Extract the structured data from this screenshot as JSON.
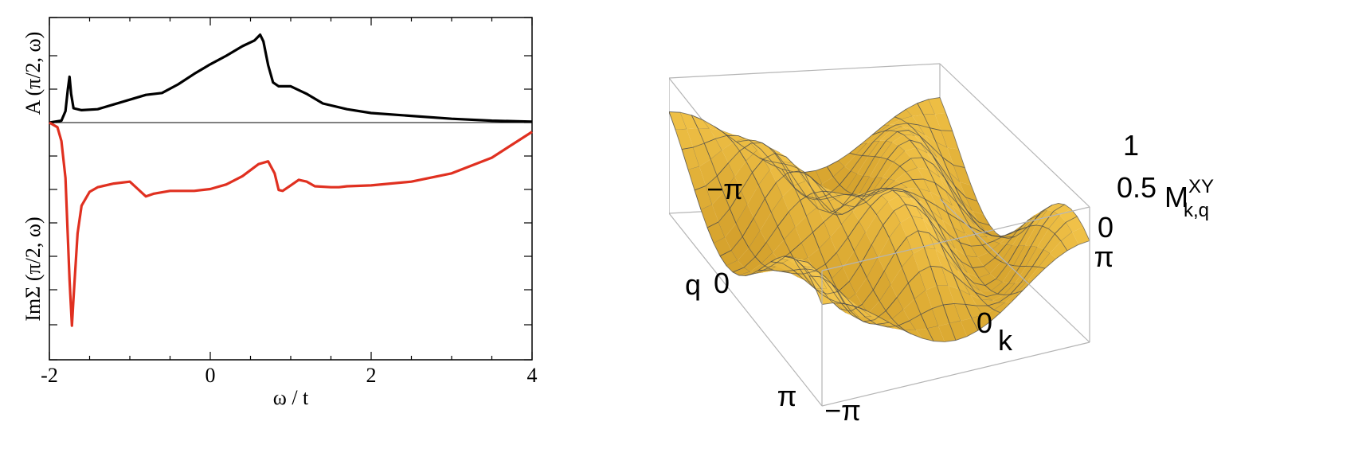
{
  "chart_data": [
    {
      "type": "line",
      "xlabel": "ω / t",
      "xlim": [
        -2,
        4
      ],
      "x_ticks": [
        "-2",
        "0",
        "2",
        "4"
      ],
      "grid": false,
      "panels": [
        {
          "ylabel": "A (π/2, ω)",
          "series": [
            {
              "color": "#000000",
              "x": [
                -2.0,
                -1.85,
                -1.8,
                -1.77,
                -1.75,
                -1.73,
                -1.7,
                -1.6,
                -1.4,
                -1.2,
                -1.0,
                -0.8,
                -0.6,
                -0.4,
                -0.2,
                0.0,
                0.2,
                0.4,
                0.55,
                0.62,
                0.66,
                0.72,
                0.78,
                0.85,
                1.0,
                1.2,
                1.4,
                1.7,
                2.0,
                2.5,
                3.0,
                3.5,
                4.0
              ],
              "y": [
                0.0,
                0.02,
                0.12,
                0.35,
                0.48,
                0.3,
                0.15,
                0.13,
                0.14,
                0.19,
                0.24,
                0.29,
                0.31,
                0.4,
                0.51,
                0.61,
                0.7,
                0.8,
                0.86,
                0.92,
                0.85,
                0.6,
                0.42,
                0.38,
                0.38,
                0.3,
                0.2,
                0.14,
                0.1,
                0.07,
                0.04,
                0.02,
                0.01
              ]
            }
          ]
        },
        {
          "ylabel": "ImΣ (π/2, ω)",
          "series": [
            {
              "color": "#e03020",
              "x": [
                -2.0,
                -1.9,
                -1.85,
                -1.8,
                -1.75,
                -1.72,
                -1.7,
                -1.65,
                -1.6,
                -1.5,
                -1.4,
                -1.2,
                -1.0,
                -0.9,
                -0.8,
                -0.7,
                -0.5,
                -0.2,
                0.0,
                0.2,
                0.4,
                0.6,
                0.72,
                0.8,
                0.85,
                0.9,
                1.0,
                1.1,
                1.2,
                1.3,
                1.5,
                1.6,
                1.7,
                2.0,
                2.5,
                3.0,
                3.5,
                4.0
              ],
              "y": [
                0.0,
                -0.05,
                -0.2,
                -0.6,
                -1.7,
                -2.2,
                -1.9,
                -1.2,
                -0.9,
                -0.75,
                -0.7,
                -0.66,
                -0.64,
                -0.72,
                -0.8,
                -0.77,
                -0.74,
                -0.74,
                -0.72,
                -0.67,
                -0.58,
                -0.45,
                -0.42,
                -0.55,
                -0.73,
                -0.74,
                -0.68,
                -0.62,
                -0.64,
                -0.69,
                -0.7,
                -0.7,
                -0.69,
                -0.68,
                -0.64,
                -0.55,
                -0.38,
                -0.1
              ]
            }
          ]
        }
      ]
    },
    {
      "type": "surface",
      "title": "",
      "k_label": "k",
      "q_label": "q",
      "z_label": "M",
      "z_label_sub": "k,q",
      "z_label_sup": "XY",
      "k_range": [
        -3.14159,
        3.14159
      ],
      "q_range": [
        -3.14159,
        3.14159
      ],
      "zlim": [
        0,
        1
      ],
      "k_ticks": [
        "−π",
        "0",
        "π"
      ],
      "q_ticks": [
        "−π",
        "0",
        "π"
      ],
      "z_ticks": [
        "0",
        "0.5",
        "1"
      ],
      "surface_color": "#f0a830",
      "mesh_color": "#4a4a4a"
    }
  ]
}
